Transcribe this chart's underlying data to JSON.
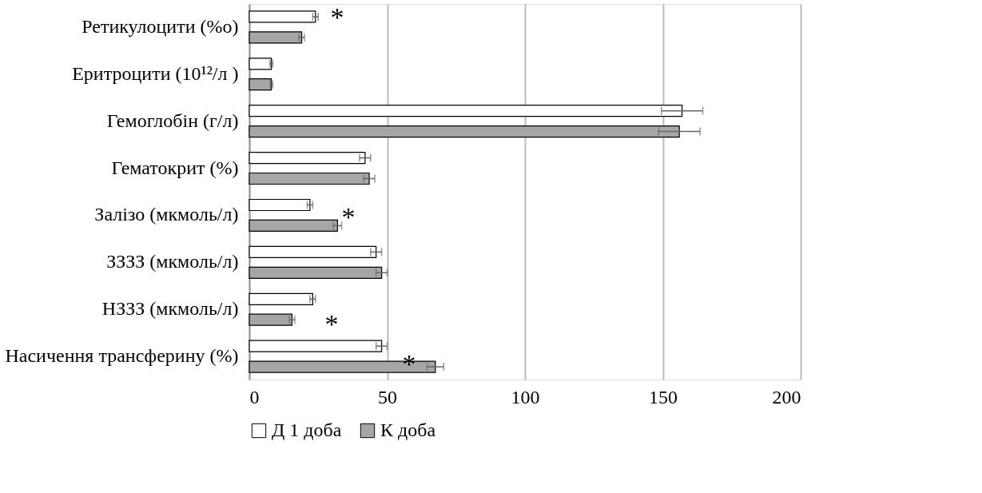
{
  "chart_data": {
    "type": "bar",
    "orientation": "horizontal",
    "categories": [
      "Ретикулоцити (%o)",
      "Еритроцити  (10¹²/л )",
      "Гемоглобін (г/л)",
      "Гематокрит (%)",
      "Залізо (мкмоль/л)",
      "ЗЗЗЗ (мкмоль/л)",
      "НЗЗЗ (мкмоль/л)",
      "Насичення трансферину (%)"
    ],
    "series": [
      {
        "name": "Д 1 доба",
        "color": "#ffffff",
        "values": [
          24,
          8,
          157,
          42,
          22,
          46,
          23,
          48
        ],
        "errors": [
          1,
          0.5,
          7.5,
          2,
          1,
          2,
          1,
          2
        ]
      },
      {
        "name": "К доба",
        "color": "#a6a6a6",
        "values": [
          19,
          8,
          156,
          43.5,
          32,
          48,
          15.5,
          67.5
        ],
        "errors": [
          1,
          0.5,
          7.5,
          2,
          1.5,
          2,
          1,
          3
        ]
      }
    ],
    "xlim": [
      0,
      200
    ],
    "xticks": [
      0,
      50,
      100,
      150,
      200
    ],
    "grid": "x",
    "legend": "bottom",
    "annotations": [
      "*",
      "*",
      "*",
      "*"
    ]
  }
}
